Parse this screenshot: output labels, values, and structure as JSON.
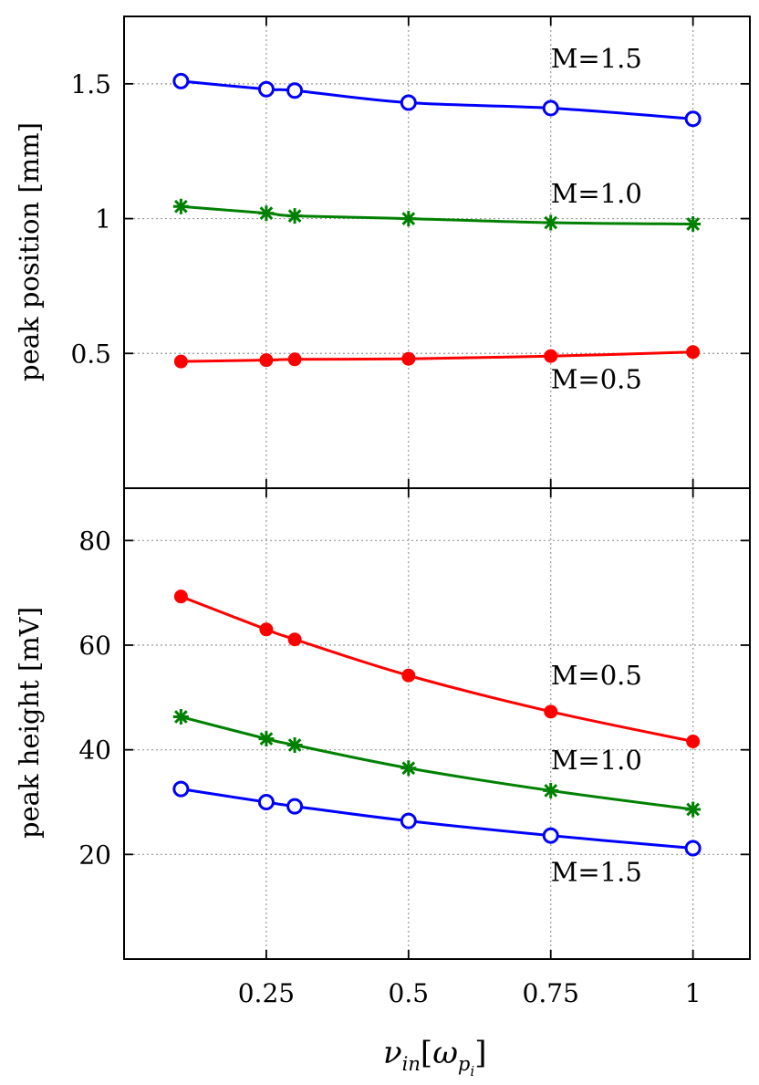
{
  "chart_data": [
    {
      "type": "line",
      "ylabel": "peak position [mm]",
      "ylim": [
        0,
        1.75
      ],
      "yticks": [
        {
          "value": 0.5,
          "label": "0.5"
        },
        {
          "value": 1,
          "label": "1"
        },
        {
          "value": 1.5,
          "label": "1.5"
        }
      ],
      "grid": true,
      "x": [
        0.1,
        0.25,
        0.3,
        0.5,
        0.75,
        1.0
      ],
      "series": [
        {
          "name": "M=1.5",
          "color": "#0000ff",
          "marker": "open-circle",
          "values": [
            1.51,
            1.48,
            1.475,
            1.43,
            1.41,
            1.37
          ],
          "label_anchor": {
            "x": 0.75,
            "y": 1.56
          }
        },
        {
          "name": "M=1.0",
          "color": "#008000",
          "marker": "star",
          "values": [
            1.045,
            1.02,
            1.01,
            1.0,
            0.985,
            0.98
          ],
          "label_anchor": {
            "x": 0.75,
            "y": 1.06
          }
        },
        {
          "name": "M=0.5",
          "color": "#ff0000",
          "marker": "filled-circle",
          "values": [
            0.47,
            0.475,
            0.478,
            0.48,
            0.49,
            0.505
          ],
          "label_anchor": {
            "x": 0.75,
            "y": 0.37
          }
        }
      ]
    },
    {
      "type": "line",
      "ylabel": "peak height [mV]",
      "xlabel": "ν_in[ω_{p_i}]",
      "xlabel_main": "ν",
      "xlabel_sub": "in",
      "xlabel_bracket_open": "[",
      "xlabel_omega": "ω",
      "xlabel_p": "p",
      "xlabel_i": "i",
      "xlabel_bracket_close": "]",
      "ylim": [
        0,
        90
      ],
      "yticks": [
        {
          "value": 20,
          "label": "20"
        },
        {
          "value": 40,
          "label": "40"
        },
        {
          "value": 60,
          "label": "60"
        },
        {
          "value": 80,
          "label": "80"
        }
      ],
      "xlim": [
        0,
        1.1
      ],
      "xticks": [
        {
          "value": 0.25,
          "label": "0.25"
        },
        {
          "value": 0.5,
          "label": "0.5"
        },
        {
          "value": 0.75,
          "label": "0.75"
        },
        {
          "value": 1,
          "label": "1"
        }
      ],
      "grid": true,
      "x": [
        0.1,
        0.25,
        0.3,
        0.5,
        0.75,
        1.0
      ],
      "series": [
        {
          "name": "M=0.5",
          "color": "#ff0000",
          "marker": "filled-circle",
          "values": [
            69.3,
            63.0,
            61.1,
            54.2,
            47.3,
            41.6
          ],
          "label_anchor": {
            "x": 0.75,
            "y": 52.5
          }
        },
        {
          "name": "M=1.0",
          "color": "#008000",
          "marker": "star",
          "values": [
            46.3,
            42.1,
            40.9,
            36.5,
            32.2,
            28.6
          ],
          "label_anchor": {
            "x": 0.75,
            "y": 36.3
          }
        },
        {
          "name": "M=1.5",
          "color": "#0000ff",
          "marker": "open-circle",
          "values": [
            32.5,
            30.0,
            29.2,
            26.4,
            23.6,
            21.2
          ],
          "label_anchor": {
            "x": 0.75,
            "y": 14.9
          }
        }
      ]
    }
  ]
}
